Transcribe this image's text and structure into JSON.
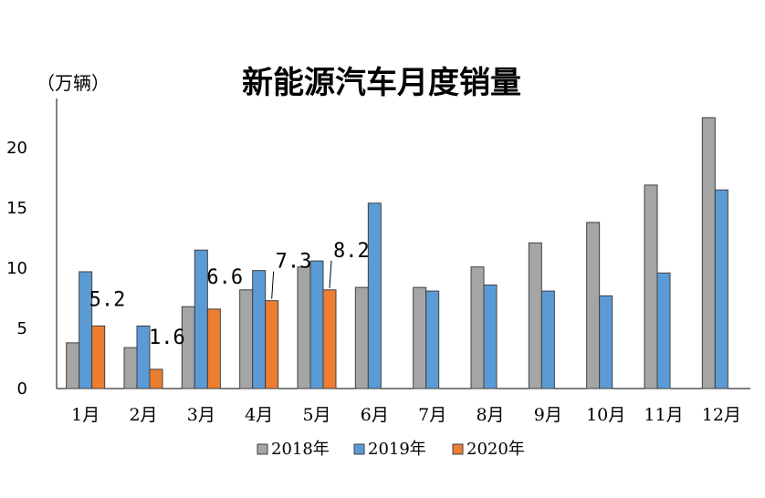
{
  "chart_data": {
    "type": "bar",
    "title": "新能源汽车月度销量",
    "unit_label": "（万辆）",
    "xlabel": "",
    "ylabel": "",
    "ylim": [
      0,
      24
    ],
    "yticks": [
      0,
      5,
      10,
      15,
      20
    ],
    "categories": [
      "1月",
      "2月",
      "3月",
      "4月",
      "5月",
      "6月",
      "7月",
      "8月",
      "9月",
      "10月",
      "11月",
      "12月"
    ],
    "series": [
      {
        "name": "2018年",
        "color": "#a5a5a5",
        "values": [
          3.8,
          3.4,
          6.8,
          8.2,
          10.1,
          8.4,
          8.4,
          10.1,
          12.1,
          13.8,
          16.9,
          22.5
        ]
      },
      {
        "name": "2019年",
        "color": "#5b9bd5",
        "values": [
          9.7,
          5.2,
          11.5,
          9.8,
          10.6,
          15.4,
          8.1,
          8.6,
          8.1,
          7.7,
          9.6,
          16.5
        ]
      },
      {
        "name": "2020年",
        "color": "#ed7d31",
        "values": [
          5.2,
          1.6,
          6.6,
          7.3,
          8.2,
          null,
          null,
          null,
          null,
          null,
          null,
          null
        ],
        "data_labels": [
          "5.2",
          "1.6",
          "6.6",
          "7.3",
          "8.2"
        ]
      }
    ],
    "grid": false,
    "legend_position": "bottom"
  }
}
